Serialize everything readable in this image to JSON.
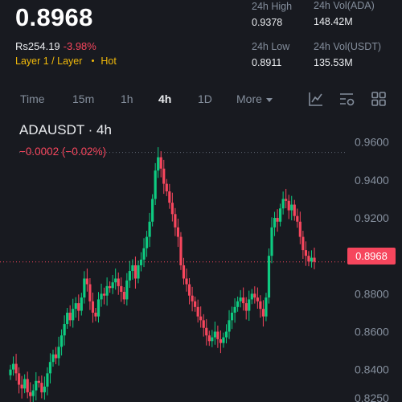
{
  "header": {
    "last_price": "0.8968",
    "fiat_price": "Rs254.19",
    "change_pct": "-3.98%",
    "tag_layer": "Layer 1 / Layer",
    "tag_hot": "Hot"
  },
  "stats": {
    "high_label": "24h High",
    "high_value": "0.9378",
    "low_label": "24h Low",
    "low_value": "0.8911",
    "vol_base_label": "24h Vol(ADA)",
    "vol_base_value": "148.42M",
    "vol_quote_label": "24h Vol(USDT)",
    "vol_quote_value": "135.53M"
  },
  "tabs": [
    {
      "label": "Time"
    },
    {
      "label": "15m"
    },
    {
      "label": "1h"
    },
    {
      "label": "4h"
    },
    {
      "label": "1D"
    },
    {
      "label": "More"
    }
  ],
  "active_tab": "4h",
  "toolbar": {
    "icons": [
      "line-chart-icon",
      "indicator-settings-icon",
      "grid-layout-icon"
    ]
  },
  "chart": {
    "symbol_title": "ADAUSDT · 4h",
    "change_text": "−0.0002 (−0.02%)",
    "current_price_tag": "0.8968",
    "colors": {
      "up": "#0ecb81",
      "down": "#f6465d",
      "background": "#181a20",
      "axis_text": "#848e9c"
    }
  },
  "chart_data": {
    "type": "candlestick",
    "ylim": [
      0.825,
      0.962
    ],
    "y_ticks": [
      "0.9600",
      "0.9400",
      "0.9200",
      "0.8800",
      "0.8600",
      "0.8400",
      "0.8250"
    ],
    "y_tick_values": [
      0.96,
      0.94,
      0.92,
      0.88,
      0.86,
      0.84,
      0.825
    ],
    "reference_high": 0.9545,
    "last": 0.8968,
    "closes": [
      0.84,
      0.843,
      0.838,
      0.832,
      0.83,
      0.835,
      0.828,
      0.826,
      0.829,
      0.834,
      0.833,
      0.828,
      0.831,
      0.838,
      0.844,
      0.848,
      0.846,
      0.852,
      0.858,
      0.864,
      0.87,
      0.866,
      0.872,
      0.875,
      0.871,
      0.878,
      0.888,
      0.885,
      0.876,
      0.87,
      0.868,
      0.877,
      0.88,
      0.879,
      0.884,
      0.883,
      0.886,
      0.888,
      0.884,
      0.881,
      0.877,
      0.887,
      0.892,
      0.895,
      0.888,
      0.895,
      0.898,
      0.904,
      0.91,
      0.918,
      0.93,
      0.945,
      0.952,
      0.946,
      0.938,
      0.934,
      0.928,
      0.922,
      0.915,
      0.91,
      0.895,
      0.888,
      0.885,
      0.879,
      0.876,
      0.873,
      0.868,
      0.866,
      0.862,
      0.858,
      0.855,
      0.857,
      0.86,
      0.856,
      0.854,
      0.857,
      0.86,
      0.866,
      0.87,
      0.873,
      0.876,
      0.878,
      0.875,
      0.871,
      0.877,
      0.88,
      0.878,
      0.876,
      0.872,
      0.868,
      0.878,
      0.9,
      0.915,
      0.92,
      0.918,
      0.925,
      0.93,
      0.929,
      0.924,
      0.927,
      0.921,
      0.918,
      0.91,
      0.903,
      0.9,
      0.897,
      0.899,
      0.8968
    ]
  }
}
